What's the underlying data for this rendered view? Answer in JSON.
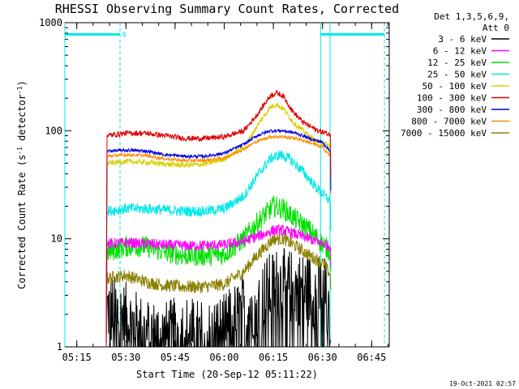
{
  "chart_data": {
    "type": "line",
    "title": "RHESSI Observing Summary Count Rates, Corrected",
    "ylabel_parts": [
      "Corrected Count Rate (s",
      "-1",
      " detector",
      "-1",
      ")"
    ],
    "xlabel": "Start Time (20-Sep-12 05:11:22)",
    "footer_stamp": "19-Oct-2021 02:57",
    "yscale": "log",
    "ylim": [
      1,
      1000
    ],
    "y_ticks": [
      {
        "value": 1,
        "label": "1"
      },
      {
        "value": 10,
        "label": "10"
      },
      {
        "value": 100,
        "label": "100"
      },
      {
        "value": 1000,
        "label": "1000"
      }
    ],
    "xlim_minutes": [
      311.37,
      410.37
    ],
    "x_ticks": [
      {
        "min": 315,
        "label": "05:15"
      },
      {
        "min": 330,
        "label": "05:30"
      },
      {
        "min": 345,
        "label": "05:45"
      },
      {
        "min": 360,
        "label": "06:00"
      },
      {
        "min": 375,
        "label": "06:15"
      },
      {
        "min": 390,
        "label": "06:30"
      },
      {
        "min": 405,
        "label": "06:45"
      }
    ],
    "legend": {
      "header": [
        "Det 1,3,5,6,9,",
        "Att 0"
      ],
      "placement": "outside-top-right",
      "items": [
        {
          "label": "3 - 6 keV",
          "color": "#000000"
        },
        {
          "label": "6 - 12 keV",
          "color": "#ff00ff"
        },
        {
          "label": "12 - 25 keV",
          "color": "#00e000"
        },
        {
          "label": "25 - 50 keV",
          "color": "#00e8e8"
        },
        {
          "label": "50 - 100 keV",
          "color": "#d8d000"
        },
        {
          "label": "100 - 300 keV",
          "color": "#e00000"
        },
        {
          "label": "300 - 800 keV",
          "color": "#0000e0"
        },
        {
          "label": "800 - 7000 keV",
          "color": "#ff8c00"
        },
        {
          "label": "7000 - 15000 keV",
          "color": "#8b8000"
        }
      ]
    },
    "flags": [
      {
        "name": "night",
        "start": 311.37,
        "end": 328.2,
        "level": 780,
        "label": ""
      },
      {
        "name": "night",
        "start": 389.4,
        "end": 408.9,
        "level": 780,
        "label": ""
      },
      {
        "name": "saa_marker",
        "at": 328.2,
        "label": "N"
      }
    ],
    "markers_minutes": [
      {
        "at": 311.37,
        "color": "#00e8e8",
        "style": "solid"
      },
      {
        "at": 328.2,
        "color": "#00e8e8",
        "style": "dashed"
      },
      {
        "at": 389.4,
        "color": "#00e8e8",
        "style": "solid"
      },
      {
        "at": 392.3,
        "color": "#00e8e8",
        "style": "solid"
      },
      {
        "at": 408.9,
        "color": "#00e8e8",
        "style": "dashed"
      }
    ],
    "series": [
      {
        "name": "3 - 6 keV",
        "color": "#000000",
        "noise": 0.35,
        "points": [
          [
            324.0,
            1
          ],
          [
            324.2,
            2.3
          ],
          [
            330,
            1.8
          ],
          [
            336,
            1.3
          ],
          [
            342,
            1.2
          ],
          [
            348,
            1.4
          ],
          [
            354,
            1.2
          ],
          [
            360,
            1.4
          ],
          [
            366,
            2.2
          ],
          [
            372,
            3.0
          ],
          [
            376,
            3.8
          ],
          [
            380,
            3.6
          ],
          [
            384,
            3.4
          ],
          [
            388,
            3.2
          ],
          [
            391,
            3.1
          ],
          [
            392.5,
            1.0
          ]
        ]
      },
      {
        "name": "6 - 12 keV",
        "color": "#ff00ff",
        "noise": 0.05,
        "points": [
          [
            324.0,
            1
          ],
          [
            324.2,
            9.0
          ],
          [
            330,
            9.2
          ],
          [
            336,
            9.0
          ],
          [
            342,
            8.8
          ],
          [
            348,
            8.6
          ],
          [
            354,
            8.7
          ],
          [
            360,
            8.8
          ],
          [
            366,
            9.5
          ],
          [
            372,
            11
          ],
          [
            375,
            12
          ],
          [
            378,
            12
          ],
          [
            382,
            11
          ],
          [
            386,
            10
          ],
          [
            390,
            9
          ],
          [
            392.5,
            8.5
          ],
          [
            392.6,
            1
          ]
        ]
      },
      {
        "name": "12 - 25 keV",
        "color": "#00e000",
        "noise": 0.1,
        "points": [
          [
            324.0,
            1
          ],
          [
            324.2,
            7.5
          ],
          [
            330,
            8.5
          ],
          [
            336,
            8.5
          ],
          [
            342,
            7.5
          ],
          [
            348,
            7.0
          ],
          [
            354,
            7.0
          ],
          [
            360,
            7.2
          ],
          [
            366,
            10
          ],
          [
            370,
            14
          ],
          [
            375,
            20
          ],
          [
            378,
            19
          ],
          [
            382,
            15
          ],
          [
            386,
            12
          ],
          [
            390,
            9
          ],
          [
            392.5,
            7.5
          ],
          [
            392.6,
            1
          ]
        ]
      },
      {
        "name": "25 - 50 keV",
        "color": "#00e8e8",
        "noise": 0.05,
        "points": [
          [
            324.0,
            1
          ],
          [
            324.2,
            18
          ],
          [
            330,
            19
          ],
          [
            336,
            19
          ],
          [
            342,
            18.5
          ],
          [
            348,
            18
          ],
          [
            354,
            18
          ],
          [
            360,
            19
          ],
          [
            366,
            25
          ],
          [
            370,
            38
          ],
          [
            374,
            55
          ],
          [
            377,
            60
          ],
          [
            380,
            55
          ],
          [
            384,
            42
          ],
          [
            388,
            30
          ],
          [
            392.5,
            22
          ],
          [
            392.6,
            1
          ]
        ]
      },
      {
        "name": "50 - 100 keV",
        "color": "#d8d000",
        "noise": 0.025,
        "points": [
          [
            324.0,
            1
          ],
          [
            324.2,
            50
          ],
          [
            330,
            52
          ],
          [
            336,
            51
          ],
          [
            342,
            49
          ],
          [
            348,
            48
          ],
          [
            354,
            49
          ],
          [
            360,
            55
          ],
          [
            366,
            70
          ],
          [
            370,
            110
          ],
          [
            374,
            165
          ],
          [
            376,
            175
          ],
          [
            378,
            160
          ],
          [
            381,
            120
          ],
          [
            384,
            100
          ],
          [
            388,
            80
          ],
          [
            392.5,
            72
          ],
          [
            392.6,
            1
          ]
        ]
      },
      {
        "name": "100 - 300 keV",
        "color": "#e00000",
        "noise": 0.025,
        "points": [
          [
            324.0,
            1
          ],
          [
            324.2,
            90
          ],
          [
            330,
            95
          ],
          [
            336,
            95
          ],
          [
            342,
            90
          ],
          [
            348,
            85
          ],
          [
            354,
            85
          ],
          [
            360,
            88
          ],
          [
            366,
            100
          ],
          [
            370,
            140
          ],
          [
            374,
            210
          ],
          [
            376,
            225
          ],
          [
            378,
            210
          ],
          [
            381,
            150
          ],
          [
            384,
            120
          ],
          [
            388,
            102
          ],
          [
            392.5,
            92
          ],
          [
            392.6,
            1
          ]
        ]
      },
      {
        "name": "300 - 800 keV",
        "color": "#0000e0",
        "noise": 0.015,
        "points": [
          [
            324.0,
            1
          ],
          [
            324.2,
            65
          ],
          [
            330,
            66
          ],
          [
            336,
            65
          ],
          [
            342,
            60
          ],
          [
            348,
            58
          ],
          [
            354,
            58
          ],
          [
            360,
            62
          ],
          [
            366,
            75
          ],
          [
            370,
            90
          ],
          [
            374,
            100
          ],
          [
            378,
            100
          ],
          [
            382,
            95
          ],
          [
            386,
            85
          ],
          [
            390,
            78
          ],
          [
            392.5,
            64
          ],
          [
            392.6,
            1
          ]
        ]
      },
      {
        "name": "800 - 7000 keV",
        "color": "#ff8c00",
        "noise": 0.015,
        "points": [
          [
            324.0,
            1
          ],
          [
            324.2,
            58
          ],
          [
            330,
            60
          ],
          [
            336,
            59
          ],
          [
            342,
            55
          ],
          [
            348,
            53
          ],
          [
            354,
            53
          ],
          [
            360,
            56
          ],
          [
            366,
            68
          ],
          [
            370,
            80
          ],
          [
            374,
            88
          ],
          [
            378,
            88
          ],
          [
            382,
            85
          ],
          [
            386,
            78
          ],
          [
            390,
            70
          ],
          [
            392.5,
            58
          ],
          [
            392.6,
            1
          ]
        ]
      },
      {
        "name": "7000 - 15000 keV",
        "color": "#8b8000",
        "noise": 0.06,
        "points": [
          [
            324.0,
            1
          ],
          [
            324.2,
            4.3
          ],
          [
            330,
            4.6
          ],
          [
            336,
            4.0
          ],
          [
            342,
            3.7
          ],
          [
            348,
            3.6
          ],
          [
            354,
            3.6
          ],
          [
            360,
            3.8
          ],
          [
            366,
            5
          ],
          [
            370,
            7
          ],
          [
            375,
            10
          ],
          [
            378,
            10
          ],
          [
            382,
            8.5
          ],
          [
            386,
            7
          ],
          [
            390,
            6
          ],
          [
            392.5,
            4.6
          ],
          [
            392.6,
            1
          ]
        ]
      }
    ]
  }
}
